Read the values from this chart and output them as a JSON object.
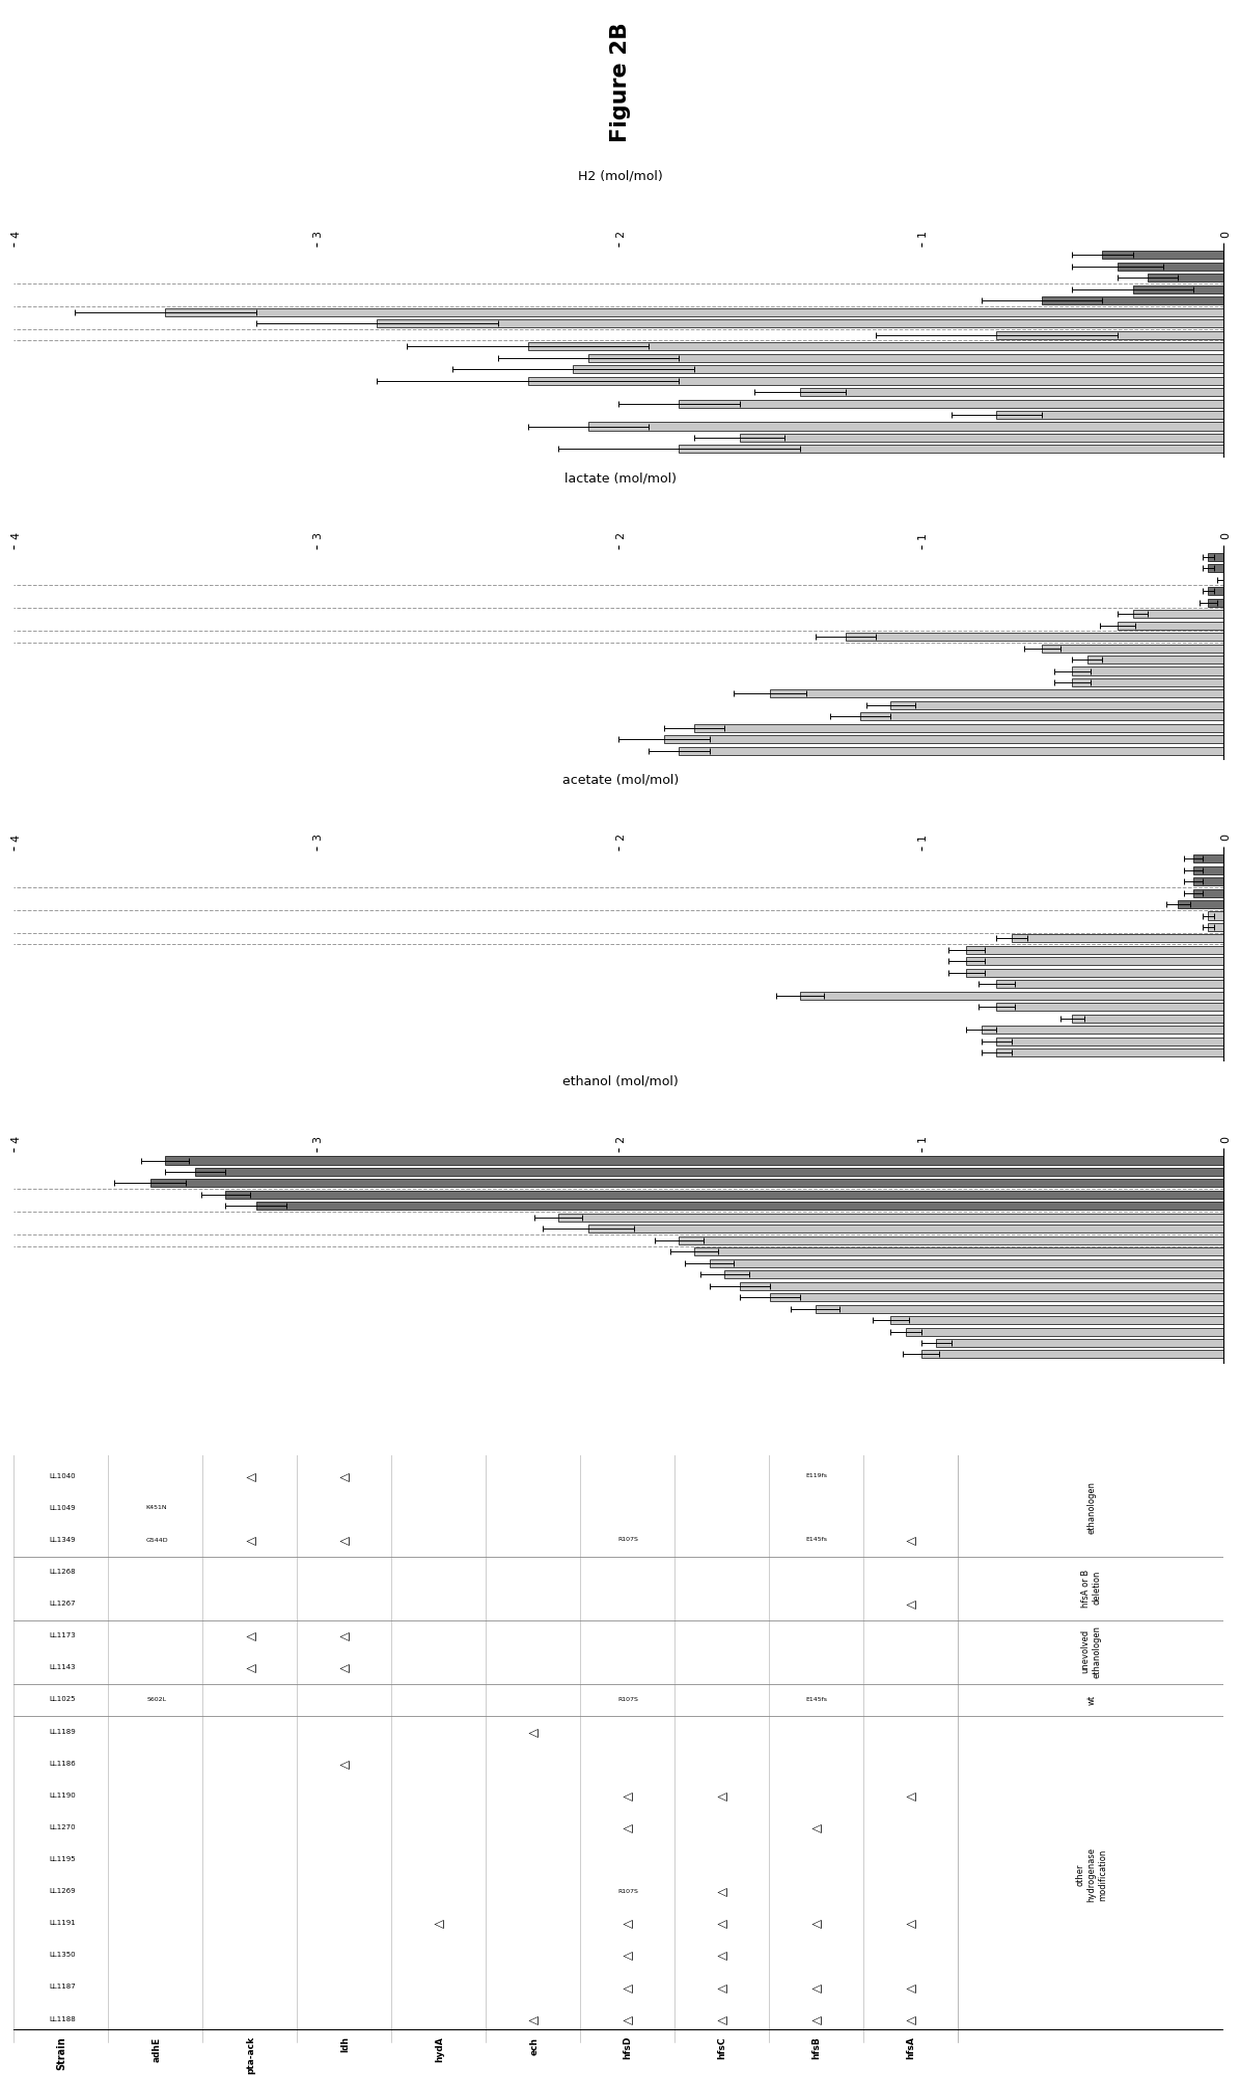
{
  "strains": [
    "LL1188",
    "LL1187",
    "LL1350",
    "LL1191",
    "LL1269",
    "LL1195",
    "LL1270",
    "LL1190",
    "LL1186",
    "LL1189",
    "LL1025",
    "LL1143",
    "LL1173",
    "LL1267",
    "LL1268",
    "LL1349",
    "LL1049",
    "LL1040"
  ],
  "ethanol": [
    1.0,
    0.95,
    1.05,
    1.1,
    1.35,
    1.5,
    1.6,
    1.65,
    1.7,
    1.75,
    1.8,
    2.1,
    2.2,
    3.2,
    3.3,
    3.55,
    3.4,
    3.5
  ],
  "ethanol_err": [
    0.06,
    0.05,
    0.05,
    0.06,
    0.08,
    0.1,
    0.1,
    0.08,
    0.08,
    0.08,
    0.08,
    0.15,
    0.08,
    0.1,
    0.08,
    0.12,
    0.1,
    0.08
  ],
  "acetate": [
    0.75,
    0.75,
    0.8,
    0.5,
    0.75,
    1.4,
    0.75,
    0.85,
    0.85,
    0.85,
    0.7,
    0.05,
    0.05,
    0.15,
    0.1,
    0.1,
    0.1,
    0.1
  ],
  "acetate_err": [
    0.05,
    0.05,
    0.05,
    0.04,
    0.06,
    0.08,
    0.06,
    0.06,
    0.06,
    0.06,
    0.05,
    0.02,
    0.02,
    0.04,
    0.03,
    0.03,
    0.03,
    0.03
  ],
  "lactate": [
    1.8,
    1.85,
    1.75,
    1.2,
    1.1,
    1.5,
    0.5,
    0.5,
    0.45,
    0.6,
    1.25,
    0.35,
    0.3,
    0.05,
    0.05,
    0.0,
    0.05,
    0.05
  ],
  "lactate_err": [
    0.1,
    0.15,
    0.1,
    0.1,
    0.08,
    0.12,
    0.06,
    0.06,
    0.05,
    0.06,
    0.1,
    0.06,
    0.05,
    0.03,
    0.02,
    0.02,
    0.02,
    0.02
  ],
  "H2": [
    1.8,
    1.6,
    2.1,
    0.75,
    1.8,
    1.4,
    2.3,
    2.15,
    2.1,
    2.3,
    0.75,
    2.8,
    3.5,
    0.6,
    0.3,
    0.25,
    0.35,
    0.4
  ],
  "H2_err": [
    0.4,
    0.15,
    0.2,
    0.15,
    0.2,
    0.15,
    0.5,
    0.4,
    0.3,
    0.4,
    0.4,
    0.4,
    0.3,
    0.2,
    0.2,
    0.1,
    0.15,
    0.1
  ],
  "bar_color_light": "#c8c8c8",
  "bar_color_dark": "#707070",
  "ylim": [
    0,
    4
  ],
  "yticks": [
    0,
    1,
    2,
    3,
    4
  ],
  "group_dividers": [
    9.5,
    10.5,
    12.5,
    14.5
  ],
  "hfsA_delta": [
    0,
    1,
    3,
    7,
    13,
    15
  ],
  "hfsB_delta": [
    0,
    1,
    3,
    6
  ],
  "hfsB_E145fs": [
    10,
    15
  ],
  "hfsB_E119fs": [
    17
  ],
  "hfsC_delta": [
    0,
    1,
    2,
    3,
    4,
    7
  ],
  "hfsD_delta": [
    0,
    1,
    2,
    3,
    6,
    7
  ],
  "hfsD_R107S": [
    4,
    10,
    15
  ],
  "ech_delta": [
    0,
    9
  ],
  "hydA_delta": [
    3
  ],
  "ldh_delta": [
    8,
    11,
    12,
    15,
    17
  ],
  "pta_ack_delta": [
    11,
    12,
    15,
    17
  ],
  "adhE_markers": {
    "10": "S602L",
    "15": "G544D",
    "16": "K451N"
  },
  "groups": [
    {
      "start": 0,
      "end": 9,
      "label": "other\nhydrogenase\nmodification"
    },
    {
      "start": 10,
      "end": 10,
      "label": "wt"
    },
    {
      "start": 11,
      "end": 12,
      "label": "unevolved\nethanologen"
    },
    {
      "start": 13,
      "end": 14,
      "label": "hfsA or B\ndeletion"
    },
    {
      "start": 15,
      "end": 17,
      "label": "ethanologen"
    }
  ]
}
